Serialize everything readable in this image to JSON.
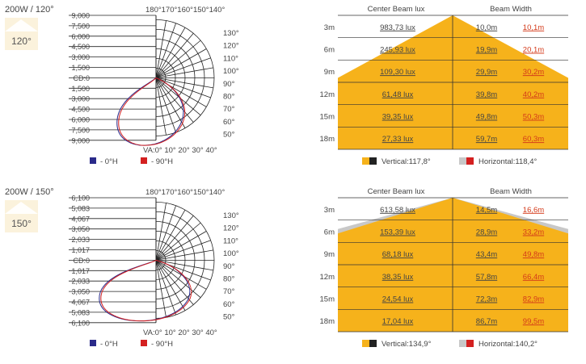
{
  "blocks": [
    {
      "title": "200W / 120°",
      "icon_label": "120°",
      "polar": {
        "ticks": [
          "9,000",
          "7,500",
          "6,000",
          "4,500",
          "3,000",
          "1,500",
          "CD:0",
          "1,500",
          "3,000",
          "4,500",
          "6,000",
          "7,500",
          "9,000"
        ],
        "top_angles": "180°170°160°150°140°",
        "right_angles": [
          "130°",
          "120°",
          "110°",
          "100°",
          "90°",
          "80°",
          "70°",
          "60°",
          "50°"
        ],
        "bottom_angles": "VA:0° 10° 20° 30° 40°"
      },
      "legend": {
        "h0": "- 0°H",
        "h90": "- 90°H",
        "h0_color": "#2a2a8a",
        "h90_color": "#d42020"
      },
      "table": {
        "col_lux": "Center Beam lux",
        "col_width": "Beam Width",
        "rows": [
          {
            "dist": "3m",
            "lux": "983,73 lux",
            "w1": "10,0m",
            "w2": "10,1m"
          },
          {
            "dist": "6m",
            "lux": "245,93 lux",
            "w1": "19,9m",
            "w2": "20,1m"
          },
          {
            "dist": "9m",
            "lux": "109,30 lux",
            "w1": "29,9m",
            "w2": "30,2m"
          },
          {
            "dist": "12m",
            "lux": "61,48 lux",
            "w1": "39,8m",
            "w2": "40,2m"
          },
          {
            "dist": "15m",
            "lux": "39,35 lux",
            "w1": "49,8m",
            "w2": "50,3m"
          },
          {
            "dist": "18m",
            "lux": "27,33 lux",
            "w1": "59,7m",
            "w2": "60,3m"
          }
        ],
        "vertical": "Vertical:117,8°",
        "horizontal": "Horizontal:118,4°"
      }
    },
    {
      "title": "200W / 150°",
      "icon_label": "150°",
      "polar": {
        "ticks": [
          "6,100",
          "5,083",
          "4,067",
          "3,050",
          "2,033",
          "1,017",
          "CD:0",
          "1,017",
          "2,033",
          "3,050",
          "4,067",
          "5,083",
          "6,100"
        ],
        "top_angles": "180°170°160°150°140°",
        "right_angles": [
          "130°",
          "120°",
          "110°",
          "100°",
          "90°",
          "80°",
          "70°",
          "60°",
          "50°"
        ],
        "bottom_angles": "VA:0° 10° 20° 30° 40°"
      },
      "legend": {
        "h0": "- 0°H",
        "h90": "- 90°H",
        "h0_color": "#2a2a8a",
        "h90_color": "#d42020"
      },
      "table": {
        "col_lux": "Center Beam lux",
        "col_width": "Beam Width",
        "rows": [
          {
            "dist": "3m",
            "lux": "613,58 lux",
            "w1": "14,5m",
            "w2": "16,6m"
          },
          {
            "dist": "6m",
            "lux": "153,39 lux",
            "w1": "28,9m",
            "w2": "33,2m"
          },
          {
            "dist": "9m",
            "lux": "68,18 lux",
            "w1": "43,4m",
            "w2": "49,8m"
          },
          {
            "dist": "12m",
            "lux": "38,35 lux",
            "w1": "57,8m",
            "w2": "66,4m"
          },
          {
            "dist": "15m",
            "lux": "24,54 lux",
            "w1": "72,3m",
            "w2": "82,9m"
          },
          {
            "dist": "18m",
            "lux": "17,04 lux",
            "w1": "86,7m",
            "w2": "99,5m"
          }
        ],
        "vertical": "Vertical:134,9°",
        "horizontal": "Horizontal:140,2°"
      }
    }
  ],
  "colors": {
    "beam": "#f6b21b",
    "beam_horizontal": "#c8c8c8",
    "grid": "#222222",
    "w2_text": "#d43a1a"
  }
}
